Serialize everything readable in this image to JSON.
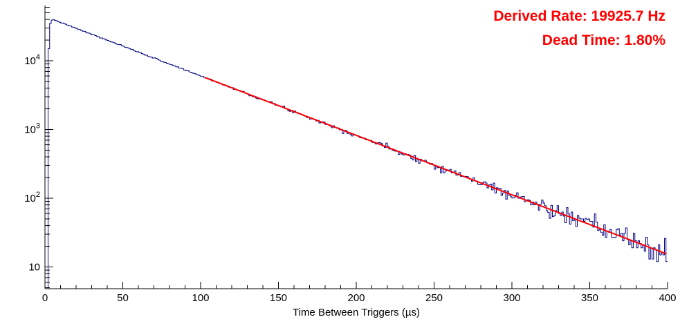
{
  "annotations": {
    "derived_rate": "Derived Rate: 19925.7 Hz",
    "dead_time": "Dead Time: 1.80%",
    "color": "#ff0000"
  },
  "chart_data": {
    "type": "line",
    "subtype": "step-histogram-with-exponential-fit",
    "title": "",
    "xlabel": "Time Between Triggers (µs)",
    "ylabel": "",
    "y_scale": "log",
    "x_range": [
      0,
      400
    ],
    "y_range": [
      5,
      64000
    ],
    "x_major_ticks": [
      0,
      50,
      100,
      150,
      200,
      250,
      300,
      350,
      400
    ],
    "x_minor_tick_step": 10,
    "y_major_ticks": [
      10,
      100,
      1000,
      10000
    ],
    "grid": false,
    "legend": "none",
    "series": [
      {
        "name": "time-between-triggers-histogram",
        "style": "step",
        "color": "#000080",
        "line_width": 1,
        "bin_width_us": 1,
        "model": {
          "form": "A*exp(-x/tau)",
          "A": 44200,
          "tau": 50.2,
          "dead_time_cutoff_us": 2,
          "noise": "poisson",
          "seed": 7
        }
      },
      {
        "name": "exponential-fit",
        "style": "smooth-line",
        "color": "#ff0000",
        "line_width": 2,
        "fit_range": [
          103,
          400
        ],
        "model": {
          "form": "A*exp(-x/tau)",
          "A": 44200,
          "tau": 50.2
        }
      }
    ],
    "sample_points": [
      {
        "x": 5,
        "y": 40000
      },
      {
        "x": 50,
        "y": 16300
      },
      {
        "x": 100,
        "y": 6030
      },
      {
        "x": 150,
        "y": 2220
      },
      {
        "x": 200,
        "y": 823
      },
      {
        "x": 250,
        "y": 304
      },
      {
        "x": 300,
        "y": 112
      },
      {
        "x": 350,
        "y": 41
      },
      {
        "x": 400,
        "y": 15
      }
    ]
  }
}
